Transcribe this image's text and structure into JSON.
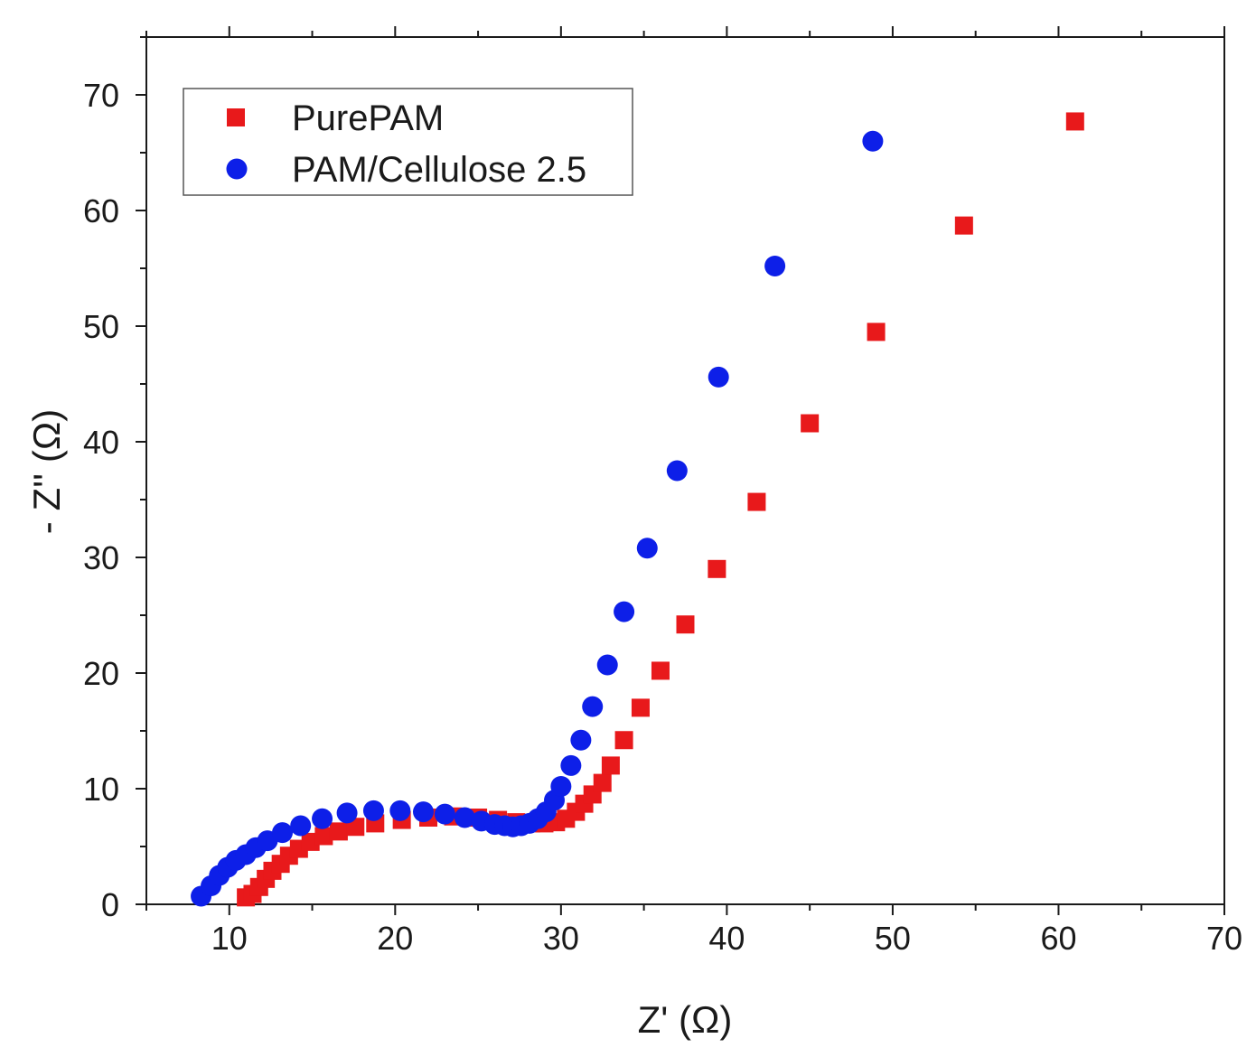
{
  "chart_data": {
    "type": "scatter",
    "title": "",
    "xlabel": "Z' (Ω)",
    "ylabel": "- Z'' (Ω)",
    "xlim": [
      5,
      70
    ],
    "ylim": [
      0,
      75
    ],
    "xticks": [
      10,
      20,
      30,
      40,
      50,
      60,
      70
    ],
    "yticks": [
      0,
      10,
      20,
      30,
      40,
      50,
      60,
      70
    ],
    "grid": false,
    "legend_position": "top-left",
    "series": [
      {
        "name": "PurePAM",
        "marker": "square",
        "color": "#e8191b",
        "x": [
          11.0,
          11.4,
          11.8,
          12.2,
          12.6,
          13.1,
          13.6,
          14.2,
          14.9,
          15.7,
          16.6,
          17.6,
          18.8,
          20.4,
          22.0,
          23.5,
          25.0,
          26.2,
          27.3,
          28.2,
          29.0,
          29.7,
          30.3,
          30.9,
          31.4,
          31.9,
          32.5,
          33.0,
          33.8,
          34.8,
          36.0,
          37.5,
          39.4,
          41.8,
          45.0,
          49.0,
          54.3,
          61.0
        ],
        "y": [
          0.6,
          0.9,
          1.5,
          2.2,
          2.9,
          3.5,
          4.2,
          4.8,
          5.4,
          5.9,
          6.3,
          6.7,
          7.0,
          7.3,
          7.5,
          7.6,
          7.5,
          7.3,
          7.1,
          7.0,
          7.0,
          7.1,
          7.4,
          8.0,
          8.7,
          9.5,
          10.5,
          12.0,
          14.2,
          17.0,
          20.2,
          24.2,
          29.0,
          34.8,
          41.6,
          49.5,
          58.7,
          67.7
        ]
      },
      {
        "name": "PAM/Cellulose 2.5",
        "marker": "circle",
        "color": "#0d1fe8",
        "x": [
          8.3,
          8.9,
          9.4,
          9.9,
          10.4,
          11.0,
          11.6,
          12.3,
          13.2,
          14.3,
          15.6,
          17.1,
          18.7,
          20.3,
          21.7,
          23.0,
          24.2,
          25.2,
          26.0,
          26.6,
          27.1,
          27.6,
          28.1,
          28.6,
          29.1,
          29.6,
          30.0,
          30.6,
          31.2,
          31.9,
          32.8,
          33.8,
          35.2,
          37.0,
          39.5,
          42.9,
          48.8
        ],
        "y": [
          0.7,
          1.6,
          2.5,
          3.2,
          3.8,
          4.3,
          4.9,
          5.5,
          6.2,
          6.8,
          7.4,
          7.9,
          8.1,
          8.1,
          8.0,
          7.8,
          7.5,
          7.2,
          6.9,
          6.8,
          6.7,
          6.8,
          7.0,
          7.4,
          8.0,
          9.0,
          10.2,
          12.0,
          14.2,
          17.1,
          20.7,
          25.3,
          30.8,
          37.5,
          45.6,
          55.2,
          66.0
        ]
      }
    ]
  }
}
